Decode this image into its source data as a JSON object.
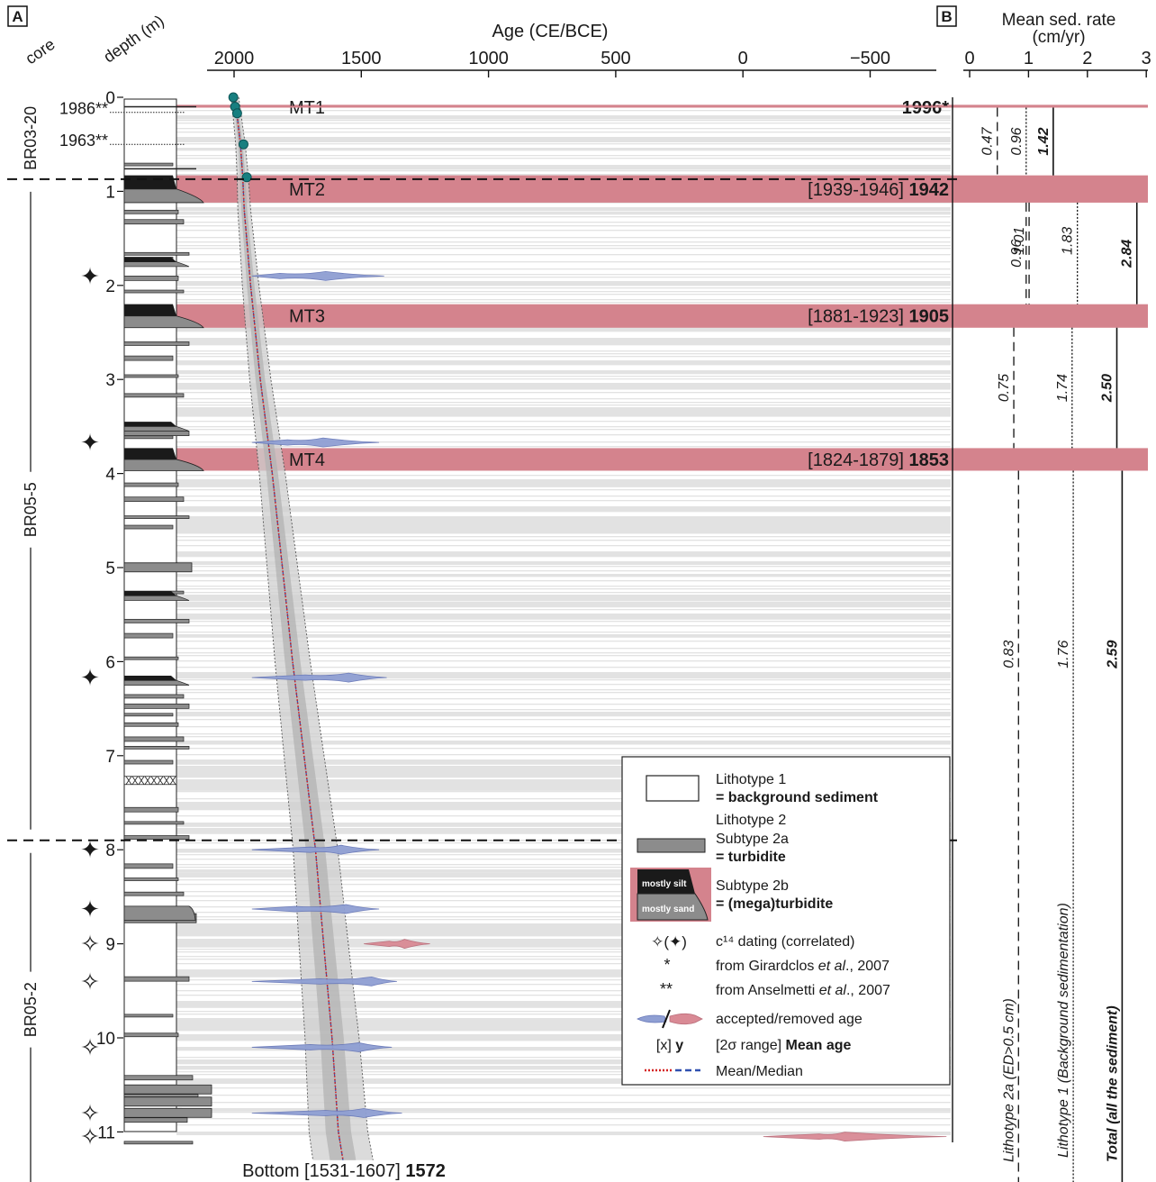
{
  "chart_data": [
    {
      "panel": "A",
      "type": "line",
      "xlabel": "Age (CE/BCE)",
      "x_ticks": [
        "2000",
        "1500",
        "1000",
        "500",
        "0",
        "−500"
      ],
      "x_tick_values": [
        2000,
        1500,
        1000,
        500,
        0,
        -500
      ],
      "xlim": [
        2070,
        -800
      ],
      "y_label_core": "core",
      "y_label_depth": "depth (m)",
      "y_ticks": [
        "0",
        "1",
        "2",
        "3",
        "4",
        "5",
        "6",
        "7",
        "8",
        "9",
        "10",
        "11"
      ],
      "y_tick_values": [
        0,
        1,
        2,
        3,
        4,
        5,
        6,
        7,
        8,
        9,
        10,
        11
      ],
      "ylim": [
        0,
        11.5
      ],
      "y_reversed": true,
      "cores": [
        {
          "name": "BR03-20",
          "from": 0,
          "to": 0.87
        },
        {
          "name": "BR05-5",
          "from": 0.87,
          "to": 7.9
        },
        {
          "name": "BR05-2",
          "from": 7.9,
          "to": 11.5
        }
      ],
      "dated_horizons": [
        {
          "label": "1986**",
          "depth": 0.16
        },
        {
          "label": "1963**",
          "depth": 0.5
        }
      ],
      "megaturbidites": [
        {
          "name": "MT1",
          "top": 0.08,
          "bottom": 0.11,
          "range": "",
          "mean": "1996*"
        },
        {
          "name": "MT2",
          "top": 0.83,
          "bottom": 1.12,
          "range": "[1939-1946]",
          "mean": "1942"
        },
        {
          "name": "MT3",
          "top": 2.2,
          "bottom": 2.45,
          "range": "[1881-1923]",
          "mean": "1905"
        },
        {
          "name": "MT4",
          "top": 3.73,
          "bottom": 3.97,
          "range": "[1824-1879]",
          "mean": "1853"
        }
      ],
      "mean_age_model": {
        "depth": [
          0,
          0.1,
          0.5,
          0.85,
          1.2,
          2.0,
          3.0,
          4.0,
          5.0,
          6.0,
          7.0,
          8.0,
          9.0,
          10.0,
          11.0,
          11.3
        ],
        "age": [
          1996,
          1992,
          1975,
          1966,
          1960,
          1935,
          1897,
          1850,
          1810,
          1770,
          1725,
          1680,
          1648,
          1615,
          1590,
          1572
        ]
      },
      "surface_points": [
        {
          "depth": 0.0,
          "age": 2003
        },
        {
          "depth": 0.1,
          "age": 1996
        },
        {
          "depth": 0.17,
          "age": 1988
        },
        {
          "depth": 0.5,
          "age": 1963
        },
        {
          "depth": 0.85,
          "age": 1950
        }
      ],
      "c14_dates": [
        {
          "depth": 1.9,
          "from": 1930,
          "to": 1410,
          "peaks": [
            1820,
            1640
          ],
          "status": "accepted",
          "symbol": "correlated"
        },
        {
          "depth": 3.67,
          "from": 1930,
          "to": 1430,
          "peaks": [
            1790,
            1650
          ],
          "status": "accepted",
          "symbol": "correlated"
        },
        {
          "depth": 6.17,
          "from": 1930,
          "to": 1400,
          "peaks": [
            1720,
            1550
          ],
          "status": "accepted",
          "symbol": "correlated"
        },
        {
          "depth": 8.0,
          "from": 1930,
          "to": 1430,
          "peaks": [
            1700,
            1580
          ],
          "status": "accepted",
          "symbol": "correlated"
        },
        {
          "depth": 8.63,
          "from": 1930,
          "to": 1430,
          "peaks": [
            1760,
            1560
          ],
          "status": "accepted",
          "symbol": "correlated"
        },
        {
          "depth": 9.0,
          "from": 1490,
          "to": 1230,
          "peaks": [
            1390,
            1330
          ],
          "status": "removed",
          "symbol": "dating"
        },
        {
          "depth": 9.4,
          "from": 1930,
          "to": 1360,
          "peaks": [
            1660,
            1460
          ],
          "status": "accepted",
          "symbol": "dating"
        },
        {
          "depth": 10.1,
          "from": 1930,
          "to": 1380,
          "peaks": [
            1700,
            1510
          ],
          "status": "accepted",
          "symbol": "dating"
        },
        {
          "depth": 10.8,
          "from": 1930,
          "to": 1340,
          "peaks": [
            1640,
            1490
          ],
          "status": "accepted",
          "symbol": "dating"
        },
        {
          "depth": 11.05,
          "from": -80,
          "to": -800,
          "peaks": [
            -300,
            -400
          ],
          "status": "removed",
          "symbol": "dating"
        }
      ],
      "bottom_label": {
        "prefix": "Bottom",
        "range": "[1531-1607]",
        "mean": "1572"
      }
    },
    {
      "panel": "B",
      "type": "bar",
      "title_line1": "Mean sed. rate",
      "title_line2": "(cm/yr)",
      "x_ticks": [
        "0",
        "1",
        "2",
        "3"
      ],
      "x_tick_values": [
        0,
        1,
        2,
        3
      ],
      "xlim": [
        0,
        3
      ],
      "series": [
        {
          "name": "Lithotype 2a (ED>0.5 cm)",
          "style": "dashed",
          "segments": [
            {
              "from": 0.11,
              "to": 0.83,
              "value": 0.47,
              "label": "0.47"
            },
            {
              "from": 1.12,
              "to": 2.2,
              "value": 0.96,
              "label": "0.96"
            },
            {
              "from": 2.45,
              "to": 3.73,
              "value": 0.75,
              "label": "0.75"
            },
            {
              "from": 3.97,
              "to": 11.5,
              "value": 0.83,
              "label": "0.83"
            }
          ]
        },
        {
          "name": "Lithotype 1 (Background sedimentation)",
          "style": "dotted",
          "segments": [
            {
              "from": 0.11,
              "to": 0.83,
              "value": 0.96,
              "label": "0.96"
            },
            {
              "from": 1.12,
              "to": 2.2,
              "value": 1.01,
              "label": "1.01"
            },
            {
              "from": 2.45,
              "to": 3.73,
              "value": 1.74,
              "label": "1.74"
            },
            {
              "from": 3.97,
              "to": 11.5,
              "value": 1.76,
              "label": "1.76"
            }
          ]
        },
        {
          "name": "Total (all the sediment)",
          "style": "solid",
          "segments": [
            {
              "from": 0.11,
              "to": 0.83,
              "value": 1.42,
              "label": "1.42"
            },
            {
              "from": 1.12,
              "to": 2.2,
              "value": 2.84,
              "label": "2.84"
            },
            {
              "from": 2.45,
              "to": 3.73,
              "value": 2.5,
              "label": "2.50"
            },
            {
              "from": 3.97,
              "to": 11.5,
              "value": 2.59,
              "label": "2.59"
            }
          ]
        }
      ],
      "extra_segment": {
        "series": 1,
        "from": 1.12,
        "to": 2.2,
        "value": 1.83,
        "label": "1.83"
      }
    }
  ],
  "legend": {
    "lithotype1": {
      "name": "Lithotype 1",
      "desc": "= background sediment"
    },
    "lithotype2": {
      "name": "Lithotype 2"
    },
    "subtype2a": {
      "name": "Subtype 2a",
      "desc": "= turbidite"
    },
    "subtype2b": {
      "name": "Subtype 2b",
      "desc": "= (mega)turbidite",
      "silt": "mostly silt",
      "sand": "mostly sand"
    },
    "c14": {
      "symbol": "✧(✦)",
      "text": "c¹⁴ dating (correlated)"
    },
    "star1": {
      "symbol": "*",
      "text_pre": "from Girardclos ",
      "text_it": "et al",
      "text_post": "., 2007"
    },
    "star2": {
      "symbol": "**",
      "text_pre": "from Anselmetti ",
      "text_it": "et al",
      "text_post": "., 2007"
    },
    "accepted": {
      "text": "accepted/removed age"
    },
    "range": {
      "symbol_pre": "[x] ",
      "symbol_b": "y",
      "text_pre": "[2σ range] ",
      "text_b": "Mean age"
    },
    "mean": {
      "text": "Mean/Median"
    }
  },
  "colors": {
    "mt_band": "#d4838d",
    "accepted": "#8f9fd3",
    "removed": "#d98a95",
    "turbidite": "#8c8c8c",
    "silt": "#1a1a1a",
    "teal": "#177f80",
    "mean_line": "#d42020",
    "median_line": "#3050b0"
  }
}
